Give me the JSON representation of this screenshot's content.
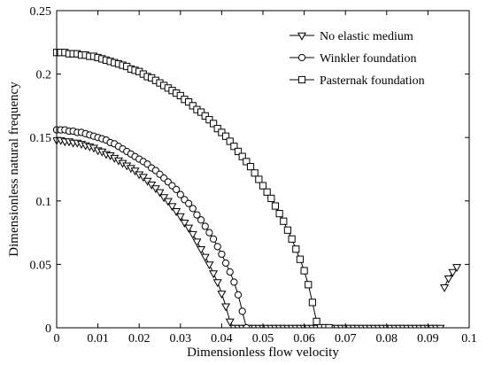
{
  "chart_data": {
    "type": "line",
    "title": "",
    "xlabel": "Dimensionless flow velocity",
    "ylabel": "Dimensionless natural frequency",
    "xlim": [
      0,
      0.1
    ],
    "ylim": [
      0,
      0.25
    ],
    "xticks": [
      0,
      0.01,
      0.02,
      0.03,
      0.04,
      0.05,
      0.06,
      0.07,
      0.08,
      0.09,
      0.1
    ],
    "xtick_labels": [
      "0",
      "0.01",
      "0.02",
      "0.03",
      "0.04",
      "0.05",
      "0.06",
      "0.07",
      "0.08",
      "0.09",
      "0.1"
    ],
    "yticks": [
      0,
      0.05,
      0.1,
      0.15,
      0.2,
      0.25
    ],
    "ytick_labels": [
      "0",
      "0.05",
      "0.1",
      "0.15",
      "0.2",
      "0.25"
    ],
    "grid": false,
    "legend_position": "top-right",
    "series": [
      {
        "name": "No elastic medium",
        "marker": "triangle-down",
        "color": "#000000",
        "segments": [
          {
            "x": [
              0,
              0.001,
              0.002,
              0.003,
              0.004,
              0.005,
              0.006,
              0.007,
              0.008,
              0.009,
              0.01,
              0.011,
              0.012,
              0.013,
              0.014,
              0.015,
              0.016,
              0.017,
              0.018,
              0.019,
              0.02,
              0.021,
              0.022,
              0.023,
              0.024,
              0.025,
              0.026,
              0.027,
              0.028,
              0.029,
              0.03,
              0.031,
              0.032,
              0.033,
              0.034,
              0.035,
              0.036,
              0.037,
              0.038,
              0.039,
              0.04,
              0.041,
              0.042,
              0.043,
              0.044,
              0.045,
              0.046,
              0.047,
              0.048,
              0.049,
              0.05,
              0.051,
              0.052,
              0.053,
              0.054,
              0.055,
              0.056,
              0.057,
              0.058,
              0.059,
              0.06,
              0.061,
              0.062,
              0.063,
              0.064,
              0.065,
              0.066,
              0.067,
              0.068,
              0.069,
              0.07,
              0.071,
              0.072,
              0.073,
              0.074,
              0.075,
              0.076,
              0.077,
              0.078,
              0.079,
              0.08,
              0.081,
              0.082,
              0.083,
              0.084,
              0.085,
              0.086,
              0.087,
              0.088,
              0.089,
              0.09,
              0.091,
              0.092,
              0.093
            ],
            "y": [
              0.148,
              0.148,
              0.147,
              0.147,
              0.146,
              0.146,
              0.145,
              0.144,
              0.143,
              0.142,
              0.14,
              0.139,
              0.137,
              0.136,
              0.134,
              0.132,
              0.13,
              0.128,
              0.126,
              0.124,
              0.121,
              0.119,
              0.116,
              0.113,
              0.11,
              0.107,
              0.103,
              0.1,
              0.096,
              0.092,
              0.088,
              0.083,
              0.079,
              0.074,
              0.068,
              0.062,
              0.056,
              0.05,
              0.043,
              0.036,
              0.027,
              0.017,
              0.005,
              0,
              0,
              0,
              0,
              0,
              0,
              0,
              0,
              0,
              0,
              0,
              0,
              0,
              0,
              0,
              0,
              0,
              0,
              0,
              0,
              0,
              0,
              0,
              0,
              0,
              0,
              0,
              0,
              0,
              0,
              0,
              0,
              0,
              0,
              0,
              0,
              0,
              0,
              0,
              0,
              0,
              0,
              0,
              0,
              0,
              0,
              0,
              0,
              0,
              0,
              0
            ]
          },
          {
            "x": [
              0.094,
              0.095,
              0.096,
              0.097
            ],
            "y": [
              0.032,
              0.039,
              0.044,
              0.048
            ]
          }
        ]
      },
      {
        "name": "Winkler foundation",
        "marker": "circle",
        "color": "#000000",
        "segments": [
          {
            "x": [
              0,
              0.001,
              0.002,
              0.003,
              0.004,
              0.005,
              0.006,
              0.007,
              0.008,
              0.009,
              0.01,
              0.011,
              0.012,
              0.013,
              0.014,
              0.015,
              0.016,
              0.017,
              0.018,
              0.019,
              0.02,
              0.021,
              0.022,
              0.023,
              0.024,
              0.025,
              0.026,
              0.027,
              0.028,
              0.029,
              0.03,
              0.031,
              0.032,
              0.033,
              0.034,
              0.035,
              0.036,
              0.037,
              0.038,
              0.039,
              0.04,
              0.041,
              0.042,
              0.043,
              0.044,
              0.045,
              0.046
            ],
            "y": [
              0.156,
              0.156,
              0.156,
              0.155,
              0.155,
              0.154,
              0.154,
              0.153,
              0.152,
              0.151,
              0.15,
              0.149,
              0.148,
              0.146,
              0.145,
              0.143,
              0.141,
              0.139,
              0.137,
              0.135,
              0.133,
              0.131,
              0.129,
              0.126,
              0.124,
              0.121,
              0.118,
              0.115,
              0.112,
              0.109,
              0.105,
              0.101,
              0.098,
              0.094,
              0.089,
              0.085,
              0.08,
              0.075,
              0.07,
              0.064,
              0.058,
              0.051,
              0.044,
              0.036,
              0.026,
              0.013,
              0
            ]
          }
        ]
      },
      {
        "name": "Pasternak foundation",
        "marker": "square",
        "color": "#000000",
        "segments": [
          {
            "x": [
              0,
              0.001,
              0.002,
              0.003,
              0.004,
              0.005,
              0.006,
              0.007,
              0.008,
              0.009,
              0.01,
              0.011,
              0.012,
              0.013,
              0.014,
              0.015,
              0.016,
              0.017,
              0.018,
              0.019,
              0.02,
              0.021,
              0.022,
              0.023,
              0.024,
              0.025,
              0.026,
              0.027,
              0.028,
              0.029,
              0.03,
              0.031,
              0.032,
              0.033,
              0.034,
              0.035,
              0.036,
              0.037,
              0.038,
              0.039,
              0.04,
              0.041,
              0.042,
              0.043,
              0.044,
              0.045,
              0.046,
              0.047,
              0.048,
              0.049,
              0.05,
              0.051,
              0.052,
              0.053,
              0.054,
              0.055,
              0.056,
              0.057,
              0.058,
              0.059,
              0.06,
              0.061,
              0.062,
              0.063,
              0.064,
              0.065,
              0.066
            ],
            "y": [
              0.217,
              0.217,
              0.217,
              0.216,
              0.216,
              0.216,
              0.215,
              0.215,
              0.214,
              0.214,
              0.213,
              0.212,
              0.211,
              0.21,
              0.209,
              0.208,
              0.207,
              0.206,
              0.204,
              0.203,
              0.202,
              0.2,
              0.198,
              0.197,
              0.195,
              0.193,
              0.191,
              0.189,
              0.187,
              0.185,
              0.183,
              0.18,
              0.178,
              0.175,
              0.172,
              0.17,
              0.167,
              0.164,
              0.161,
              0.157,
              0.154,
              0.151,
              0.147,
              0.143,
              0.139,
              0.135,
              0.131,
              0.127,
              0.122,
              0.117,
              0.112,
              0.107,
              0.102,
              0.096,
              0.09,
              0.084,
              0.077,
              0.07,
              0.062,
              0.054,
              0.045,
              0.034,
              0.02,
              0.005,
              0,
              0,
              0
            ]
          }
        ]
      }
    ]
  }
}
